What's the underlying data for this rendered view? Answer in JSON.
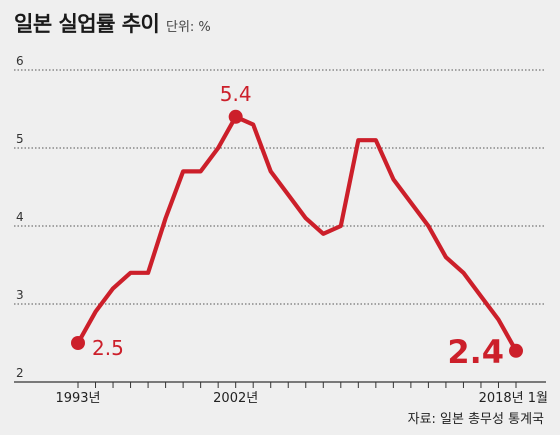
{
  "title": "일본 실업률 추이",
  "unit_label": "단위: %",
  "source": "자료: 일본 총무성 통계국",
  "colors": {
    "line": "#cc1f2a",
    "grid": "#555555",
    "background": "#efefef",
    "text": "#222222"
  },
  "chart_data": {
    "type": "line",
    "title": "일본 실업률 추이",
    "unit": "%",
    "grid": true,
    "ylim": [
      2,
      6
    ],
    "yticks": [
      2,
      3,
      4,
      5,
      6
    ],
    "x": [
      1993,
      1994,
      1995,
      1996,
      1997,
      1998,
      1999,
      2000,
      2001,
      2002,
      2003,
      2004,
      2005,
      2006,
      2007,
      2008,
      2009,
      2010,
      2011,
      2012,
      2013,
      2014,
      2015,
      2016,
      2017,
      2018
    ],
    "xlim": [
      1993,
      2018
    ],
    "xtick_labels": [
      {
        "x": 1993,
        "label": "1993년"
      },
      {
        "x": 2002,
        "label": "2002년"
      },
      {
        "x": 2018,
        "label": "2018년 1월"
      }
    ],
    "series": [
      {
        "values": [
          2.5,
          2.9,
          3.2,
          3.4,
          3.4,
          4.1,
          4.7,
          4.7,
          5.0,
          5.4,
          5.3,
          4.7,
          4.4,
          4.1,
          3.9,
          4.0,
          5.1,
          5.1,
          4.6,
          4.3,
          4.0,
          3.6,
          3.4,
          3.1,
          2.8,
          2.4
        ]
      }
    ],
    "annotations": [
      {
        "x": 1993,
        "y": 2.5,
        "label": "2.5"
      },
      {
        "x": 2002,
        "y": 5.4,
        "label": "5.4"
      },
      {
        "x": 2018,
        "y": 2.4,
        "label": "2.4"
      }
    ]
  }
}
